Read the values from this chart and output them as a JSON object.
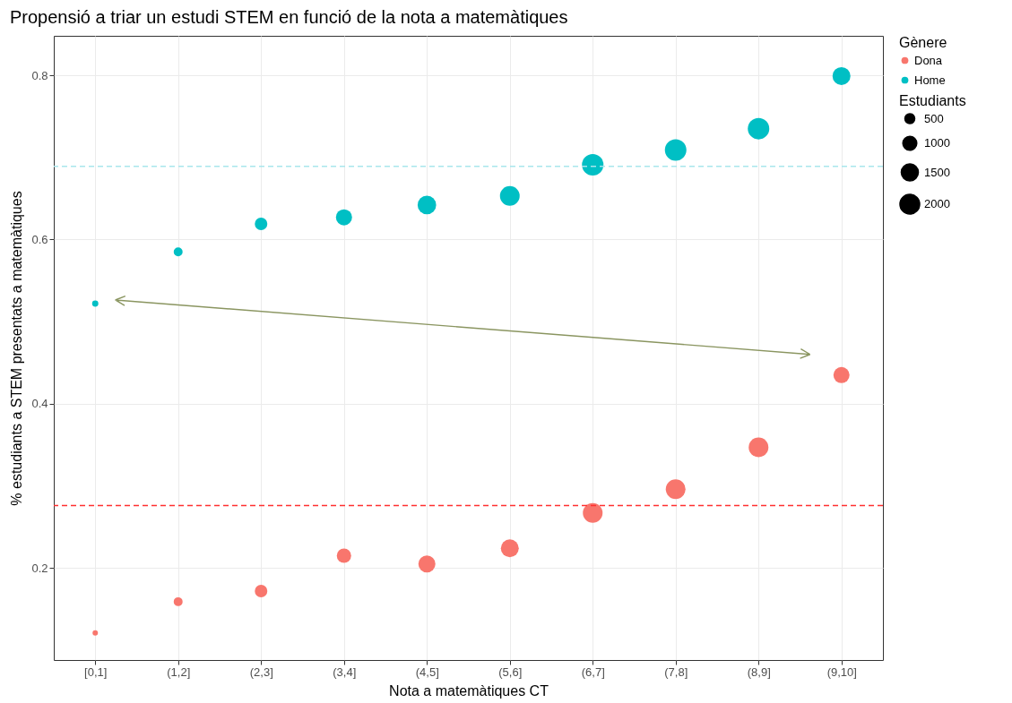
{
  "chart_data": {
    "type": "bubble",
    "title": "Propensió a triar un estudi STEM en funció de la nota a matemàtiques",
    "xlabel": "Nota a matemàtiques CT",
    "ylabel": "% estudiants a STEM presentats a matemàtiques",
    "legend_title": [
      "Gènere",
      "Estudiants"
    ],
    "categories": [
      "[0,1]",
      "(1,2]",
      "(2,3]",
      "(3,4]",
      "(4,5]",
      "(5,6]",
      "(6,7]",
      "(7,8]",
      "(8,9]",
      "(9,10]"
    ],
    "series": [
      {
        "name": "Dona",
        "color": "#f8766d",
        "values": [
          0.121,
          0.159,
          0.172,
          0.215,
          0.205,
          0.224,
          0.267,
          0.296,
          0.347,
          0.435
        ],
        "sizes": [
          150,
          410,
          810,
          1060,
          1490,
          1650,
          2000,
          2000,
          2000,
          1340
        ]
      },
      {
        "name": "Home",
        "color": "#00bfc4",
        "values": [
          0.522,
          0.585,
          0.619,
          0.627,
          0.642,
          0.653,
          0.691,
          0.709,
          0.735,
          0.799
        ],
        "sizes": [
          200,
          410,
          810,
          1340,
          1770,
          2000,
          2380,
          2380,
          2380,
          1650
        ]
      }
    ],
    "size_legend": [
      500,
      1000,
      1500,
      2000
    ],
    "ylim": [
      0.088,
      0.848
    ],
    "yticks": [
      0.2,
      0.4,
      0.6,
      0.8
    ],
    "ref_lines": [
      {
        "axis": "y",
        "value": 0.689,
        "color": "#a8e6ec",
        "line_style": "dashed"
      },
      {
        "axis": "y",
        "value": 0.276,
        "color": "#ff3030",
        "line_style": "dashed"
      }
    ],
    "grid": true,
    "legend": "right",
    "marker": "circle"
  }
}
